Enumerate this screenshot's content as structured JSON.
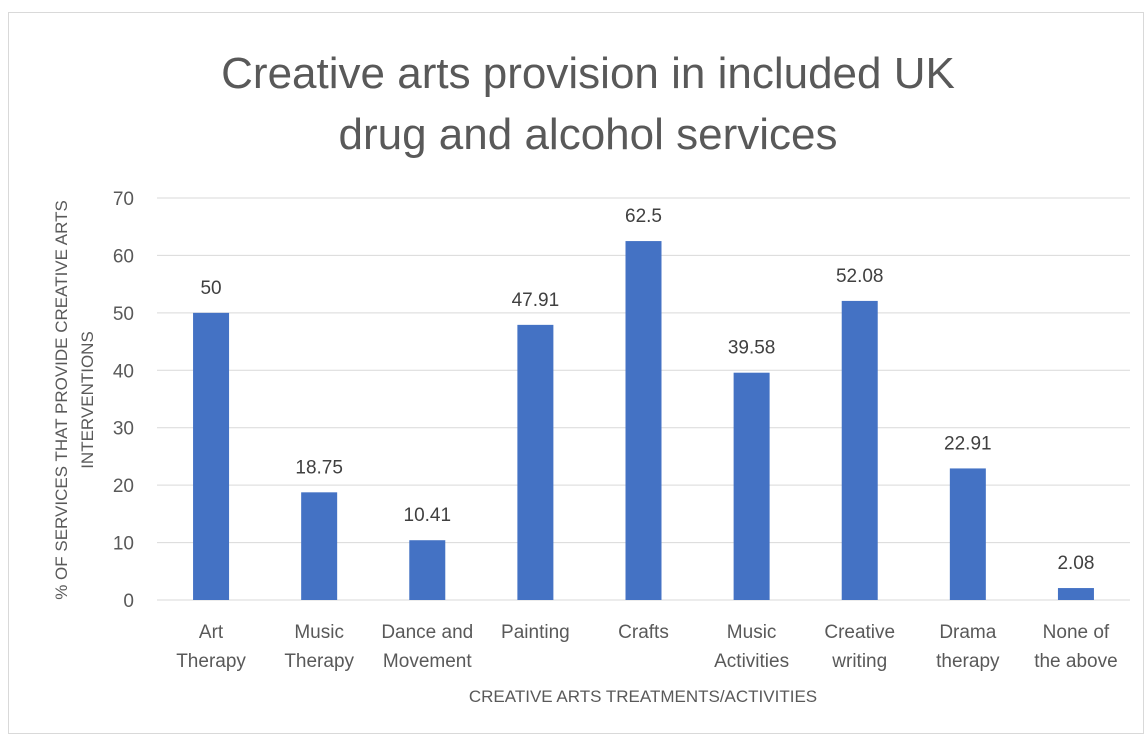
{
  "chart_data": {
    "type": "bar",
    "title_lines": [
      "Creative arts provision in included UK",
      "drug and alcohol services"
    ],
    "title": "Creative arts provision in included UK drug and alcohol services",
    "xlabel": "CREATIVE ARTS TREATMENTS/ACTIVITIES",
    "ylabel_lines": [
      "% OF SERVICES THAT PROVIDE CREATIVE ARTS",
      "INTERVENTIONS"
    ],
    "ylabel": "% OF SERVICES THAT PROVIDE CREATIVE ARTS INTERVENTIONS",
    "ylim": [
      0,
      70
    ],
    "yticks": [
      0,
      10,
      20,
      30,
      40,
      50,
      60,
      70
    ],
    "grid": true,
    "bar_color": "#4472c4",
    "categories": [
      [
        "Art",
        "Therapy"
      ],
      [
        "Music",
        "Therapy"
      ],
      [
        "Dance and",
        "Movement"
      ],
      [
        "Painting"
      ],
      [
        "Crafts"
      ],
      [
        "Music",
        "Activities"
      ],
      [
        "Creative",
        "writing"
      ],
      [
        "Drama",
        "therapy"
      ],
      [
        "None of",
        "the above"
      ]
    ],
    "values": [
      50,
      18.75,
      10.41,
      47.91,
      62.5,
      39.58,
      52.08,
      22.91,
      2.08
    ],
    "data_labels": [
      "50",
      "18.75",
      "10.41",
      "47.91",
      "62.5",
      "39.58",
      "52.08",
      "22.91",
      "2.08"
    ]
  }
}
